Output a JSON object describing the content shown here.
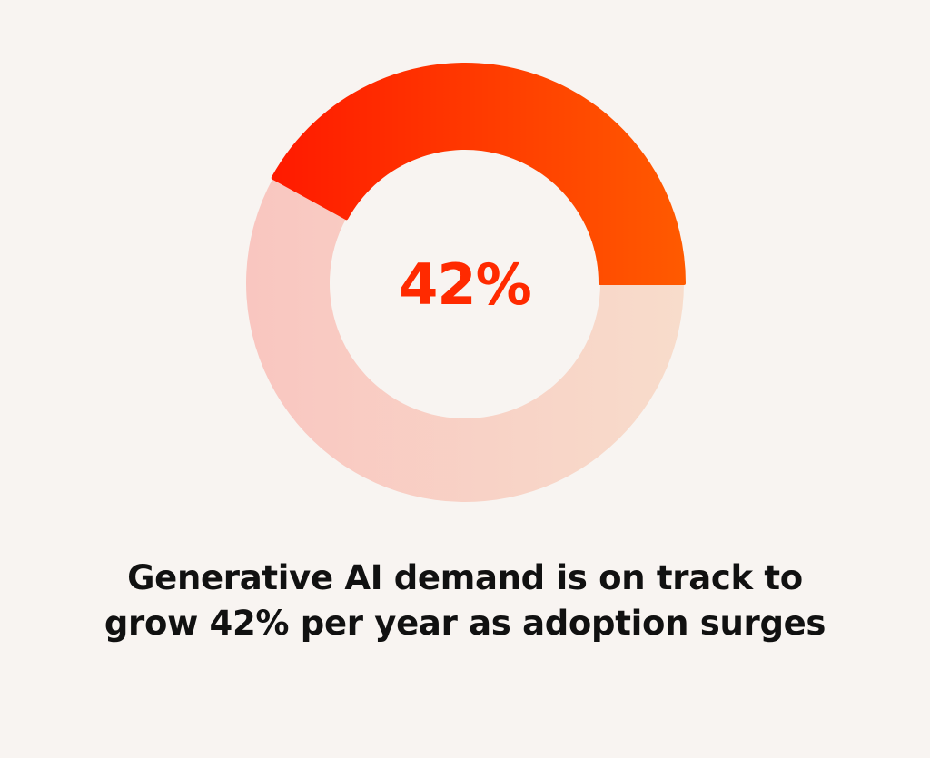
{
  "chart_data": {
    "type": "pie",
    "title": "",
    "slices": [
      {
        "label": "",
        "value": 42,
        "color": "#ff3300"
      },
      {
        "label": "",
        "value": 58,
        "color": "#f9cfc6"
      }
    ],
    "center_label": "42%",
    "colors": {
      "accent_start": "#ff1a00",
      "accent_end": "#ff5a00",
      "track_start": "#f9c6c0",
      "track_end": "#f8dccb",
      "background": "#f8f4f1"
    }
  },
  "caption": {
    "line1": "Generative AI demand is on track to",
    "line2": "grow 42% per year as adoption surges"
  }
}
